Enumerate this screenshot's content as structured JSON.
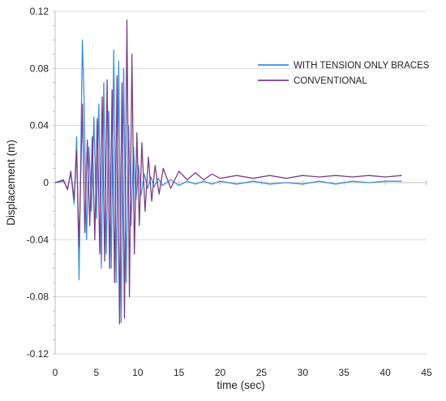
{
  "chart_data": {
    "type": "line",
    "title": "",
    "xlabel": "time (sec)",
    "ylabel": "Displacement (m)",
    "xlim": [
      0,
      45
    ],
    "ylim": [
      -0.12,
      0.12
    ],
    "x_ticks": [
      0,
      5,
      10,
      15,
      20,
      25,
      30,
      35,
      40,
      45
    ],
    "y_ticks": [
      -0.12,
      -0.08,
      -0.04,
      0,
      0.04,
      0.08,
      0.12
    ],
    "x_tick_labels": [
      "0",
      "5",
      "10",
      "15",
      "20",
      "25",
      "30",
      "35",
      "40",
      "45"
    ],
    "y_tick_labels": [
      "-0.12",
      "-0.08",
      "-0.04",
      "0",
      "0.04",
      "0.08",
      "0.12"
    ],
    "grid": {
      "horizontal": true,
      "vertical": false
    },
    "legend_position": "top-right",
    "series": [
      {
        "name": "WITH TENSION ONLY BRACES",
        "color": "#3b8de6",
        "x": [
          0,
          1,
          1.5,
          1.9,
          2.3,
          2.6,
          2.9,
          3.3,
          3.5,
          3.8,
          4.1,
          4.4,
          4.7,
          5.0,
          5.3,
          5.6,
          5.9,
          6.2,
          6.5,
          6.8,
          7.1,
          7.4,
          7.7,
          8.0,
          8.3,
          8.6,
          8.9,
          9.2,
          9.5,
          9.8,
          10.1,
          10.4,
          10.8,
          11.2,
          11.6,
          12.0,
          12.5,
          13.0,
          14.0,
          15.0,
          16.0,
          17.0,
          18.0,
          19.0,
          20.0,
          22.0,
          24.0,
          26.0,
          28.0,
          30.0,
          32.0,
          34.0,
          36.0,
          38.0,
          40.0,
          42.0
        ],
        "y": [
          0,
          0.001,
          -0.004,
          0.007,
          -0.015,
          0.032,
          -0.068,
          0.1,
          0.06,
          -0.04,
          0.025,
          -0.02,
          0.046,
          -0.025,
          0.055,
          -0.06,
          0.07,
          -0.05,
          0.05,
          -0.06,
          0.093,
          -0.07,
          0.085,
          -0.098,
          0.08,
          -0.07,
          0.04,
          -0.03,
          0.025,
          -0.012,
          0.012,
          -0.009,
          0.006,
          -0.004,
          0.004,
          -0.003,
          0.003,
          -0.002,
          0.002,
          -0.002,
          0.001,
          -0.001,
          0.001,
          -0.001,
          0.001,
          -0.001,
          0.001,
          -0.001,
          0,
          -0.001,
          0.001,
          -0.001,
          0.001,
          0,
          0.001,
          0.001
        ]
      },
      {
        "name": "CONVENTIONAL",
        "color": "#7b3f86",
        "x": [
          0,
          1,
          1.5,
          1.9,
          2.3,
          2.6,
          2.9,
          3.3,
          3.6,
          3.9,
          4.2,
          4.5,
          4.8,
          5.1,
          5.4,
          5.7,
          6.0,
          6.3,
          6.6,
          6.9,
          7.2,
          7.5,
          7.8,
          8.1,
          8.4,
          8.7,
          9.0,
          9.3,
          9.6,
          9.9,
          10.2,
          10.5,
          10.9,
          11.3,
          11.7,
          12.1,
          12.6,
          13.1,
          14.0,
          15.0,
          16.0,
          17.0,
          18.0,
          19.0,
          20.0,
          22.0,
          24.0,
          26.0,
          28.0,
          30.0,
          32.0,
          34.0,
          36.0,
          38.0,
          40.0,
          42.0
        ],
        "y": [
          0,
          0.002,
          -0.005,
          0.008,
          -0.012,
          0.022,
          -0.045,
          0.055,
          -0.035,
          0.03,
          -0.03,
          0.032,
          -0.04,
          0.045,
          -0.05,
          0.06,
          -0.055,
          0.072,
          -0.06,
          0.065,
          -0.07,
          0.075,
          -0.099,
          0.07,
          -0.095,
          0.114,
          -0.08,
          0.09,
          -0.05,
          0.035,
          -0.03,
          0.028,
          -0.02,
          0.018,
          -0.013,
          0.012,
          -0.008,
          0.01,
          -0.004,
          0.008,
          0.002,
          0.007,
          0.002,
          0.006,
          0.003,
          0.005,
          0.003,
          0.005,
          0.003,
          0.005,
          0.004,
          0.005,
          0.004,
          0.005,
          0.004,
          0.005
        ]
      }
    ]
  }
}
